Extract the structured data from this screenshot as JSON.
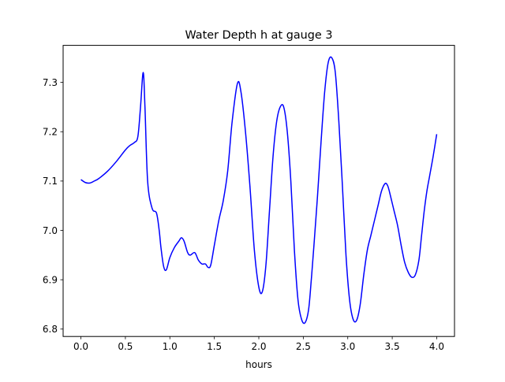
{
  "chart_data": {
    "type": "line",
    "title": "Water Depth h at gauge 3",
    "xlabel": "hours",
    "ylabel": "",
    "xlim": [
      -0.2,
      4.2
    ],
    "ylim": [
      6.785,
      7.375
    ],
    "xticks": [
      0.0,
      0.5,
      1.0,
      1.5,
      2.0,
      2.5,
      3.0,
      3.5,
      4.0
    ],
    "xtick_labels": [
      "0.0",
      "0.5",
      "1.0",
      "1.5",
      "2.0",
      "2.5",
      "3.0",
      "3.5",
      "4.0"
    ],
    "yticks": [
      6.8,
      6.9,
      7.0,
      7.1,
      7.2,
      7.3
    ],
    "ytick_labels": [
      "6.8",
      "6.9",
      "7.0",
      "7.1",
      "7.2",
      "7.3"
    ],
    "grid": false,
    "legend": "none",
    "series": [
      {
        "color": "#0000ff",
        "x": [
          0.0,
          0.05,
          0.1,
          0.15,
          0.2,
          0.3,
          0.4,
          0.5,
          0.55,
          0.6,
          0.64,
          0.67,
          0.7,
          0.72,
          0.75,
          0.8,
          0.85,
          0.88,
          0.9,
          0.93,
          0.96,
          1.0,
          1.05,
          1.1,
          1.13,
          1.16,
          1.2,
          1.23,
          1.28,
          1.32,
          1.36,
          1.4,
          1.43,
          1.46,
          1.5,
          1.55,
          1.6,
          1.65,
          1.7,
          1.76,
          1.8,
          1.85,
          1.9,
          1.95,
          2.0,
          2.04,
          2.08,
          2.12,
          2.16,
          2.2,
          2.24,
          2.28,
          2.32,
          2.36,
          2.4,
          2.44,
          2.48,
          2.52,
          2.56,
          2.59,
          2.62,
          2.66,
          2.7,
          2.74,
          2.78,
          2.82,
          2.86,
          2.9,
          2.94,
          2.98,
          3.02,
          3.06,
          3.1,
          3.14,
          3.18,
          3.22,
          3.26,
          3.3,
          3.34,
          3.38,
          3.42,
          3.45,
          3.48,
          3.52,
          3.56,
          3.6,
          3.64,
          3.68,
          3.72,
          3.76,
          3.8,
          3.83,
          3.86,
          3.89,
          3.92,
          3.96,
          4.0
        ],
        "y": [
          7.103,
          7.097,
          7.096,
          7.1,
          7.105,
          7.12,
          7.14,
          7.163,
          7.172,
          7.178,
          7.19,
          7.25,
          7.32,
          7.25,
          7.1,
          7.045,
          7.035,
          7.0,
          6.965,
          6.927,
          6.92,
          6.945,
          6.965,
          6.978,
          6.985,
          6.978,
          6.955,
          6.95,
          6.955,
          6.94,
          6.932,
          6.932,
          6.925,
          6.93,
          6.97,
          7.02,
          7.06,
          7.12,
          7.22,
          7.298,
          7.28,
          7.2,
          7.09,
          6.96,
          6.885,
          6.876,
          6.93,
          7.04,
          7.15,
          7.22,
          7.25,
          7.25,
          7.2,
          7.1,
          6.96,
          6.86,
          6.82,
          6.813,
          6.84,
          6.9,
          6.97,
          7.07,
          7.18,
          7.28,
          7.34,
          7.35,
          7.32,
          7.22,
          7.09,
          6.95,
          6.86,
          6.82,
          6.818,
          6.85,
          6.91,
          6.96,
          6.99,
          7.02,
          7.05,
          7.08,
          7.095,
          7.09,
          7.07,
          7.04,
          7.01,
          6.97,
          6.935,
          6.915,
          6.905,
          6.91,
          6.94,
          6.99,
          7.04,
          7.08,
          7.11,
          7.15,
          7.195
        ]
      }
    ]
  }
}
